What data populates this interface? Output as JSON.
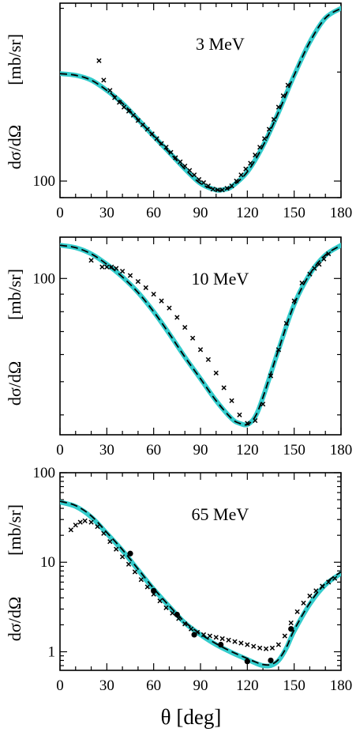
{
  "colors": {
    "theory_band": "#33cccc",
    "theory_dashed": "#000000",
    "data": "#000000",
    "frame": "#000000"
  },
  "chart_data": [
    {
      "type": "line",
      "annotation": "3 MeV",
      "ylabel_left": "dσ/dΩ",
      "ylabel_right": "[mb/sr]",
      "xlim": [
        0,
        180
      ],
      "x_ticks": [
        "0",
        "30",
        "60",
        "90",
        "120",
        "150",
        "180"
      ],
      "y_scale": "log",
      "ylim": [
        90,
        310
      ],
      "y_tick_values": [
        100
      ],
      "y_tick_labels": [
        "100"
      ],
      "series": [
        {
          "style": "band",
          "x": [
            0,
            10,
            20,
            30,
            40,
            50,
            60,
            70,
            80,
            90,
            100,
            105,
            110,
            120,
            130,
            140,
            150,
            160,
            170,
            180
          ],
          "y": [
            198,
            196,
            190,
            178,
            164,
            148,
            133,
            120,
            108,
            98.5,
            94.5,
            94.8,
            96.5,
            106,
            125,
            155,
            196,
            242,
            282,
            300
          ]
        },
        {
          "style": "dashed",
          "x": [
            0,
            10,
            20,
            30,
            40,
            50,
            60,
            70,
            80,
            90,
            100,
            105,
            110,
            120,
            130,
            140,
            150,
            160,
            170,
            180
          ],
          "y": [
            198,
            196,
            190,
            178,
            164,
            148,
            133,
            120,
            108,
            98.5,
            94.5,
            94.8,
            96.5,
            106,
            125,
            155,
            196,
            242,
            282,
            300
          ]
        },
        {
          "style": "cross",
          "x": [
            25,
            28,
            32,
            35,
            38,
            41,
            44,
            47,
            50,
            53,
            56,
            59,
            62,
            65,
            68,
            71,
            74,
            77,
            80,
            83,
            86,
            89,
            92,
            95,
            98,
            101,
            104,
            107,
            110,
            113,
            116,
            119,
            122,
            125,
            128,
            131,
            134,
            137,
            140,
            143,
            146
          ],
          "y": [
            215,
            190,
            178,
            170,
            165,
            160,
            156,
            152,
            147,
            143,
            139,
            135,
            131,
            127,
            124,
            120,
            116,
            113,
            110,
            107,
            104,
            101,
            99,
            97,
            95,
            94.5,
            94.5,
            95.5,
            97,
            100,
            104,
            108,
            112,
            118,
            124,
            131,
            139,
            148,
            160,
            172,
            184
          ]
        }
      ]
    },
    {
      "type": "line",
      "annotation": "10 MeV",
      "ylabel_left": "dσ/dΩ",
      "ylabel_right": "[mb/sr]",
      "xlim": [
        0,
        180
      ],
      "x_ticks": [
        "0",
        "30",
        "60",
        "90",
        "120",
        "150",
        "180"
      ],
      "y_scale": "log",
      "ylim": [
        35,
        132
      ],
      "y_tick_values": [
        100
      ],
      "y_tick_labels": [
        "100"
      ],
      "series": [
        {
          "style": "band",
          "x": [
            0,
            10,
            20,
            30,
            40,
            50,
            60,
            70,
            80,
            90,
            100,
            110,
            115,
            120,
            125,
            130,
            140,
            150,
            160,
            170,
            180
          ],
          "y": [
            125,
            123,
            118,
            110,
            101,
            91,
            80,
            69,
            59,
            51,
            44,
            39,
            37.8,
            37.5,
            39.5,
            45,
            62,
            84,
            103,
            117,
            125
          ]
        },
        {
          "style": "dashed",
          "x": [
            0,
            10,
            20,
            30,
            40,
            50,
            60,
            70,
            80,
            90,
            100,
            110,
            115,
            120,
            125,
            130,
            140,
            150,
            160,
            170,
            180
          ],
          "y": [
            125,
            123,
            118,
            110,
            101,
            91,
            80,
            69,
            59,
            51,
            44,
            39,
            37.8,
            37.5,
            39.5,
            45,
            62,
            84,
            103,
            117,
            125
          ]
        },
        {
          "style": "cross",
          "x": [
            20,
            27,
            30,
            33,
            36,
            40,
            45,
            50,
            55,
            60,
            65,
            70,
            75,
            80,
            85,
            90,
            95,
            100,
            105,
            110,
            115,
            120,
            125,
            130,
            135,
            140,
            145,
            150,
            155,
            160,
            163,
            166,
            169,
            172
          ],
          "y": [
            113,
            108,
            108,
            108,
            107,
            105,
            102,
            98,
            94,
            90,
            86,
            82,
            77,
            72,
            67,
            62,
            58,
            53,
            48,
            44,
            40,
            37.8,
            38.5,
            43,
            52,
            62,
            74,
            86,
            97,
            103,
            107,
            110,
            114,
            118
          ]
        }
      ]
    },
    {
      "type": "line",
      "annotation": "65 MeV",
      "ylabel_left": "dσ/dΩ",
      "ylabel_right": "[mb/sr]",
      "xlabel": "θ  [deg]",
      "xlim": [
        0,
        180
      ],
      "x_ticks": [
        "0",
        "30",
        "60",
        "90",
        "120",
        "150",
        "180"
      ],
      "y_scale": "log",
      "ylim": [
        0.62,
        100
      ],
      "y_tick_values": [
        1,
        10,
        100
      ],
      "y_tick_labels": [
        "1",
        "10",
        "100"
      ],
      "series": [
        {
          "style": "band",
          "x": [
            0,
            10,
            20,
            30,
            40,
            50,
            60,
            70,
            80,
            90,
            100,
            110,
            120,
            125,
            130,
            135,
            140,
            145,
            150,
            160,
            170,
            180
          ],
          "y": [
            47,
            42,
            32,
            21,
            13.5,
            8.2,
            5,
            3.2,
            2.1,
            1.55,
            1.2,
            0.98,
            0.82,
            0.75,
            0.7,
            0.7,
            0.8,
            1.1,
            1.7,
            3.4,
            5.6,
            7.5
          ]
        },
        {
          "style": "dashed",
          "x": [
            0,
            10,
            20,
            30,
            40,
            50,
            60,
            70,
            80,
            90,
            100,
            110,
            120,
            125,
            130,
            135,
            140,
            145,
            150,
            160,
            170,
            180
          ],
          "y": [
            48,
            43,
            33,
            21.5,
            13.8,
            8.4,
            5.1,
            3.25,
            2.15,
            1.58,
            1.23,
            1.0,
            0.84,
            0.77,
            0.72,
            0.72,
            0.82,
            1.12,
            1.75,
            3.5,
            5.8,
            7.8
          ]
        },
        {
          "style": "cross",
          "x": [
            7,
            10,
            13,
            16,
            20,
            24,
            28,
            32,
            36,
            40,
            44,
            48,
            52,
            56,
            60,
            64,
            68,
            72,
            76,
            80,
            84,
            88,
            92,
            96,
            100,
            104,
            108,
            112,
            116,
            120,
            124,
            128,
            132,
            136,
            140,
            144,
            148,
            152,
            156,
            160,
            164,
            168,
            172,
            176
          ],
          "y": [
            23,
            26,
            28,
            29,
            28,
            25,
            21,
            17,
            14,
            11.5,
            9.5,
            7.8,
            6.4,
            5.3,
            4.4,
            3.7,
            3.1,
            2.7,
            2.35,
            2.05,
            1.8,
            1.65,
            1.55,
            1.5,
            1.45,
            1.4,
            1.35,
            1.3,
            1.25,
            1.2,
            1.15,
            1.1,
            1.08,
            1.1,
            1.2,
            1.5,
            2.1,
            2.8,
            3.5,
            4.2,
            4.8,
            5.4,
            6.0,
            6.6
          ]
        },
        {
          "style": "dot",
          "x": [
            45,
            60,
            75,
            86,
            103,
            120,
            135,
            148
          ],
          "y": [
            12.5,
            4.8,
            2.6,
            1.55,
            1.2,
            0.78,
            0.8,
            1.8
          ]
        }
      ]
    }
  ]
}
